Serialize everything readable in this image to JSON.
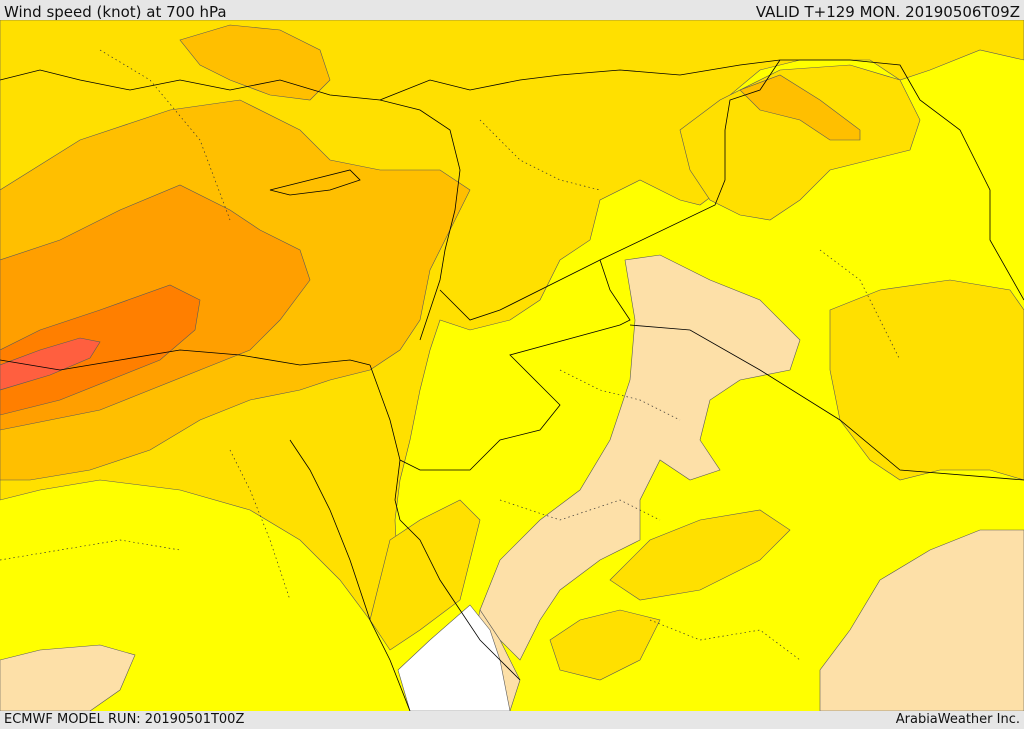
{
  "header": {
    "title": "Wind speed (knot) at 700 hPa",
    "valid": "VALID T+129 MON. 20190506T09Z"
  },
  "footer": {
    "model_run": "ECMWF MODEL RUN: 20190501T00Z",
    "credit": "ArabiaWeather Inc."
  },
  "colors": {
    "band_1": "#ffff00",
    "band_2": "#ffe000",
    "band_3": "#ffbf00",
    "band_4": "#ff9f00",
    "band_5": "#ff7f00",
    "band_6": "#ff5f3f",
    "calm_low": "#fde0a8",
    "no_data": "#ffffff",
    "border": "#000000"
  }
}
